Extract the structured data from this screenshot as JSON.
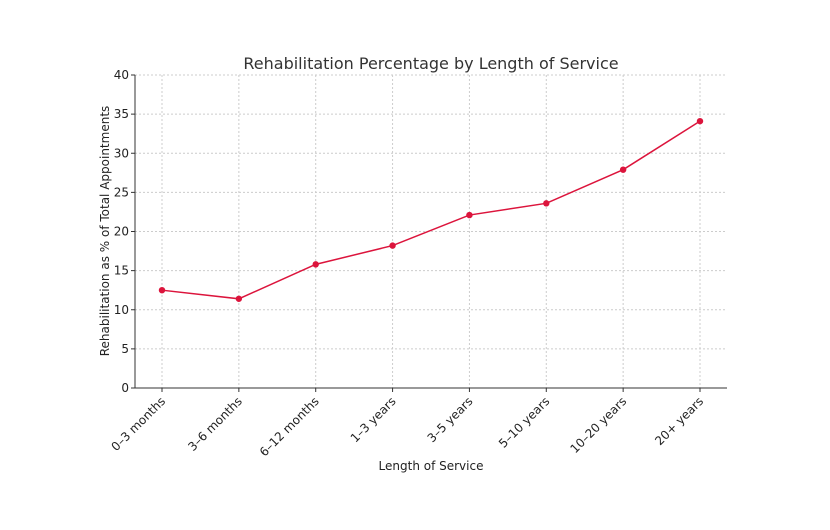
{
  "chart_data": {
    "type": "line",
    "title": "Rehabilitation Percentage by Length of Service",
    "xlabel": "Length of Service",
    "ylabel": "Rehabilitation as % of Total Appointments",
    "categories": [
      "0–3 months",
      "3–6 months",
      "6–12 months",
      "1–3 years",
      "3–5 years",
      "5–10 years",
      "10–20 years",
      "20+ years"
    ],
    "series": [
      {
        "values": [
          12.5,
          11.4,
          15.8,
          18.2,
          22.1,
          23.6,
          27.9,
          34.1
        ],
        "color": "#dc143c"
      }
    ],
    "ylim": [
      0,
      40
    ],
    "yticks": [
      0,
      5,
      10,
      15,
      20,
      25,
      30,
      35,
      40
    ],
    "grid": true,
    "x_tick_rotation": 45
  }
}
